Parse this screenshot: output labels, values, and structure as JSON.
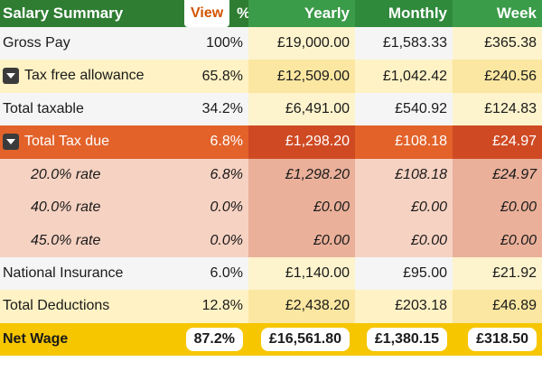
{
  "header": {
    "title": "Salary Summary",
    "view_label": "View",
    "percent": "%",
    "yearly": "Yearly",
    "monthly": "Monthly",
    "week": "Week"
  },
  "rows": [
    {
      "label": "Gross Pay",
      "pct": "100%",
      "yearly": "£19,000.00",
      "monthly": "£1,583.33",
      "week": "£365.38"
    },
    {
      "label": "Tax free allowance",
      "pct": "65.8%",
      "yearly": "£12,509.00",
      "monthly": "£1,042.42",
      "week": "£240.56",
      "toggle_icon": "caret-down-icon"
    },
    {
      "label": "Total taxable",
      "pct": "34.2%",
      "yearly": "£6,491.00",
      "monthly": "£540.92",
      "week": "£124.83"
    },
    {
      "label": "Total Tax due",
      "pct": "6.8%",
      "yearly": "£1,298.20",
      "monthly": "£108.18",
      "week": "£24.97",
      "toggle_icon": "caret-down-icon"
    },
    {
      "label": "20.0% rate",
      "pct": "6.8%",
      "yearly": "£1,298.20",
      "monthly": "£108.18",
      "week": "£24.97"
    },
    {
      "label": "40.0% rate",
      "pct": "0.0%",
      "yearly": "£0.00",
      "monthly": "£0.00",
      "week": "£0.00"
    },
    {
      "label": "45.0% rate",
      "pct": "0.0%",
      "yearly": "£0.00",
      "monthly": "£0.00",
      "week": "£0.00"
    },
    {
      "label": "National Insurance",
      "pct": "6.0%",
      "yearly": "£1,140.00",
      "monthly": "£95.00",
      "week": "£21.92"
    },
    {
      "label": "Total Deductions",
      "pct": "12.8%",
      "yearly": "£2,438.20",
      "monthly": "£203.18",
      "week": "£46.89"
    }
  ],
  "net": {
    "label": "Net Wage",
    "pct": "87.2%",
    "yearly": "£16,561.80",
    "monthly": "£1,380.15",
    "week": "£318.50"
  },
  "colors": {
    "header_green": "#2e7d32",
    "view_orange": "#d35400",
    "tax_orange": "#e2622a",
    "net_yellow": "#f6c600"
  }
}
